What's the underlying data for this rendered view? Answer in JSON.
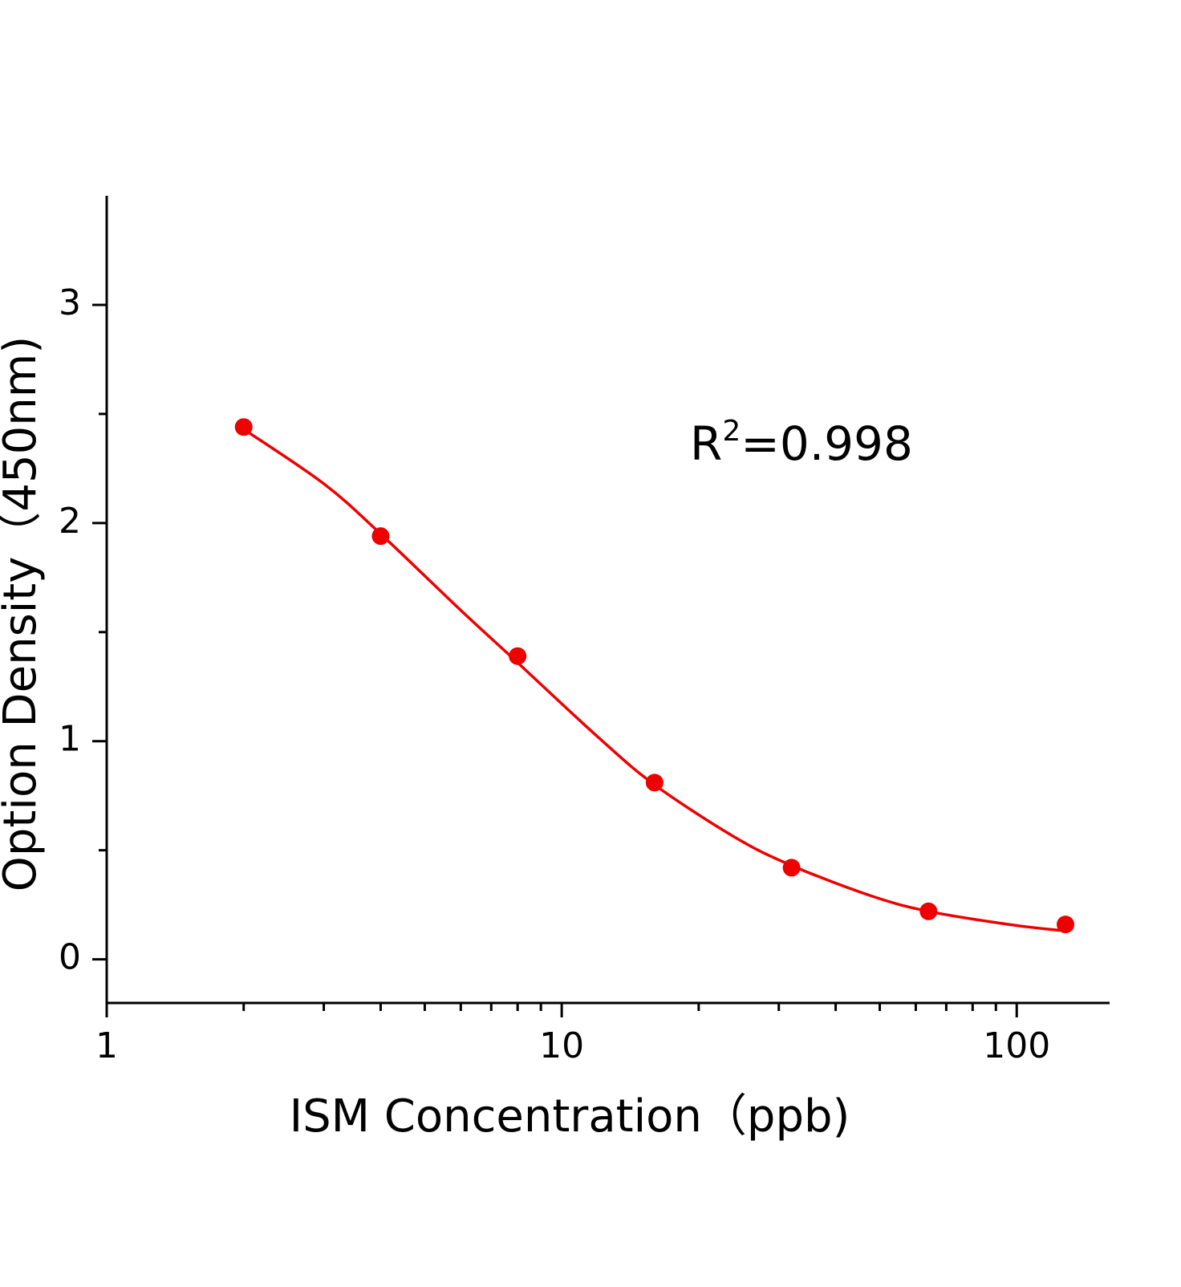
{
  "chart_data": {
    "type": "scatter",
    "x_label": "ISM Concentration（ppb)",
    "y_label": "Option Density（450nm)",
    "annotation": {
      "base": "R",
      "sup": "2",
      "rest": "=0.998"
    },
    "x": [
      2,
      4,
      8,
      16,
      32,
      64,
      128
    ],
    "series": [
      {
        "color": "#ee0000",
        "values": [
          2.44,
          1.94,
          1.39,
          0.81,
          0.42,
          0.22,
          0.16
        ]
      }
    ],
    "curve": {
      "color": "#ee0000",
      "x": [
        2,
        3,
        4,
        6,
        8,
        12,
        16,
        24,
        32,
        48,
        64,
        96,
        128
      ],
      "values": [
        2.43,
        2.18,
        1.95,
        1.6,
        1.36,
        1.02,
        0.8,
        0.56,
        0.43,
        0.29,
        0.22,
        0.16,
        0.13
      ]
    },
    "xscale": "log",
    "xlim": [
      1,
      160
    ],
    "xticks": [
      1,
      10,
      100
    ],
    "xminorticks": [
      2,
      3,
      4,
      5,
      6,
      7,
      8,
      9,
      20,
      30,
      40,
      50,
      60,
      70,
      80,
      90
    ],
    "ylim": [
      -0.2,
      3.5
    ],
    "yticks": [
      0,
      1,
      2,
      3
    ],
    "yminorticks": [
      0.5,
      1.5,
      2.5
    ],
    "grid": false
  }
}
